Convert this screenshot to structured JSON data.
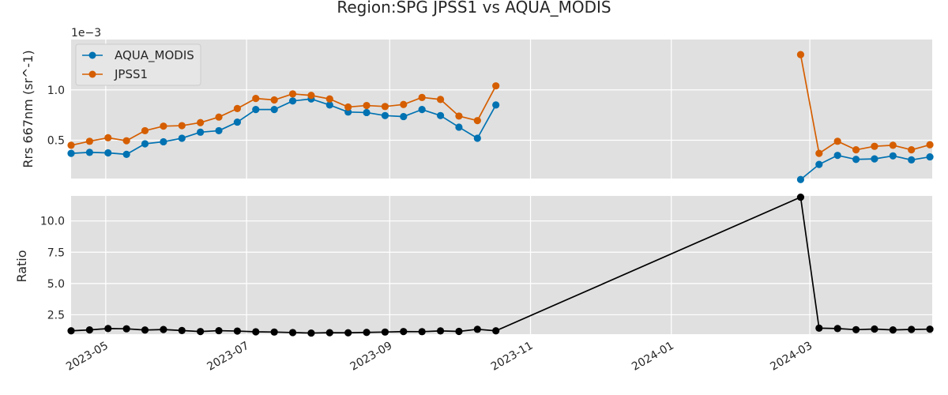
{
  "chart_data": {
    "title": "Region:SPG JPSS1 vs AQUA_MODIS",
    "panels": [
      {
        "type": "line",
        "ylabel": "Rrs 667nm (sr^-1)",
        "y_offset_label": "1e−3",
        "y_scale_factor": 0.001,
        "ylim": [
          0.12,
          1.5
        ],
        "yticks": [
          0.5,
          1.0
        ],
        "ytick_labels": [
          "0.5",
          "1.0"
        ],
        "legend_location": "upper-left",
        "grid": true,
        "series": [
          {
            "name": "AQUA_MODIS",
            "color": "#0072b2",
            "points": [
              [
                "2023-04-16",
                0.37
              ],
              [
                "2023-04-24",
                0.38
              ],
              [
                "2023-05-02",
                0.375
              ],
              [
                "2023-05-10",
                0.36
              ],
              [
                "2023-05-18",
                0.465
              ],
              [
                "2023-05-26",
                0.485
              ],
              [
                "2023-06-03",
                0.52
              ],
              [
                "2023-06-11",
                0.58
              ],
              [
                "2023-06-19",
                0.595
              ],
              [
                "2023-06-27",
                0.68
              ],
              [
                "2023-07-05",
                0.805
              ],
              [
                "2023-07-13",
                0.805
              ],
              [
                "2023-07-21",
                0.89
              ],
              [
                "2023-07-29",
                0.91
              ],
              [
                "2023-08-06",
                0.85
              ],
              [
                "2023-08-14",
                0.78
              ],
              [
                "2023-08-22",
                0.775
              ],
              [
                "2023-08-30",
                0.745
              ],
              [
                "2023-09-07",
                0.735
              ],
              [
                "2023-09-15",
                0.805
              ],
              [
                "2023-09-23",
                0.745
              ],
              [
                "2023-10-01",
                0.63
              ],
              [
                "2023-10-09",
                0.52
              ],
              [
                "2023-10-17",
                0.85
              ],
              null,
              [
                "2024-02-26",
                0.11
              ],
              [
                "2024-03-05",
                0.26
              ],
              [
                "2024-03-13",
                0.35
              ],
              [
                "2024-03-21",
                0.31
              ],
              [
                "2024-03-29",
                0.315
              ],
              [
                "2024-04-06",
                0.345
              ],
              [
                "2024-04-14",
                0.305
              ],
              [
                "2024-04-22",
                0.335
              ]
            ]
          },
          {
            "name": "JPSS1",
            "color": "#d55e00",
            "points": [
              [
                "2023-04-16",
                0.45
              ],
              [
                "2023-04-24",
                0.49
              ],
              [
                "2023-05-02",
                0.525
              ],
              [
                "2023-05-10",
                0.495
              ],
              [
                "2023-05-18",
                0.595
              ],
              [
                "2023-05-26",
                0.64
              ],
              [
                "2023-06-03",
                0.645
              ],
              [
                "2023-06-11",
                0.675
              ],
              [
                "2023-06-19",
                0.73
              ],
              [
                "2023-06-27",
                0.815
              ],
              [
                "2023-07-05",
                0.915
              ],
              [
                "2023-07-13",
                0.9
              ],
              [
                "2023-07-21",
                0.96
              ],
              [
                "2023-07-29",
                0.945
              ],
              [
                "2023-08-06",
                0.91
              ],
              [
                "2023-08-14",
                0.83
              ],
              [
                "2023-08-22",
                0.845
              ],
              [
                "2023-08-30",
                0.835
              ],
              [
                "2023-09-07",
                0.855
              ],
              [
                "2023-09-15",
                0.925
              ],
              [
                "2023-09-23",
                0.905
              ],
              [
                "2023-10-01",
                0.74
              ],
              [
                "2023-10-09",
                0.695
              ],
              [
                "2023-10-17",
                1.04
              ],
              null,
              [
                "2024-02-26",
                1.35
              ],
              [
                "2024-03-05",
                0.37
              ],
              [
                "2024-03-13",
                0.49
              ],
              [
                "2024-03-21",
                0.405
              ],
              [
                "2024-03-29",
                0.44
              ],
              [
                "2024-04-06",
                0.45
              ],
              [
                "2024-04-14",
                0.405
              ],
              [
                "2024-04-22",
                0.455
              ]
            ]
          }
        ]
      },
      {
        "type": "line",
        "ylabel": "Ratio",
        "ylim": [
          0.95,
          12.0
        ],
        "yticks": [
          2.5,
          5.0,
          7.5,
          10.0
        ],
        "ytick_labels": [
          "2.5",
          "5.0",
          "7.5",
          "10.0"
        ],
        "grid": true,
        "series": [
          {
            "name": "",
            "color": "#000000",
            "points": [
              [
                "2023-04-16",
                1.22
              ],
              [
                "2023-04-24",
                1.29
              ],
              [
                "2023-05-02",
                1.4
              ],
              [
                "2023-05-10",
                1.38
              ],
              [
                "2023-05-18",
                1.28
              ],
              [
                "2023-05-26",
                1.32
              ],
              [
                "2023-06-03",
                1.24
              ],
              [
                "2023-06-11",
                1.16
              ],
              [
                "2023-06-19",
                1.23
              ],
              [
                "2023-06-27",
                1.2
              ],
              [
                "2023-07-05",
                1.14
              ],
              [
                "2023-07-13",
                1.12
              ],
              [
                "2023-07-21",
                1.08
              ],
              [
                "2023-07-29",
                1.04
              ],
              [
                "2023-08-06",
                1.07
              ],
              [
                "2023-08-14",
                1.06
              ],
              [
                "2023-08-22",
                1.09
              ],
              [
                "2023-08-30",
                1.12
              ],
              [
                "2023-09-07",
                1.16
              ],
              [
                "2023-09-15",
                1.15
              ],
              [
                "2023-09-23",
                1.21
              ],
              [
                "2023-10-01",
                1.17
              ],
              [
                "2023-10-09",
                1.34
              ],
              [
                "2023-10-17",
                1.22
              ],
              [
                "2024-02-26",
                11.9
              ],
              [
                "2024-03-05",
                1.43
              ],
              [
                "2024-03-13",
                1.4
              ],
              [
                "2024-03-21",
                1.31
              ],
              [
                "2024-03-29",
                1.36
              ],
              [
                "2024-04-06",
                1.29
              ],
              [
                "2024-04-14",
                1.33
              ],
              [
                "2024-04-22",
                1.35
              ]
            ]
          }
        ]
      }
    ],
    "xlim": [
      "2023-04-16",
      "2024-04-23"
    ],
    "xticks": [
      "2023-05-01",
      "2023-07-01",
      "2023-09-01",
      "2023-11-01",
      "2024-01-01",
      "2024-03-01"
    ],
    "xtick_labels": [
      "2023-05",
      "2023-07",
      "2023-09",
      "2023-11",
      "2024-01",
      "2024-03"
    ]
  }
}
